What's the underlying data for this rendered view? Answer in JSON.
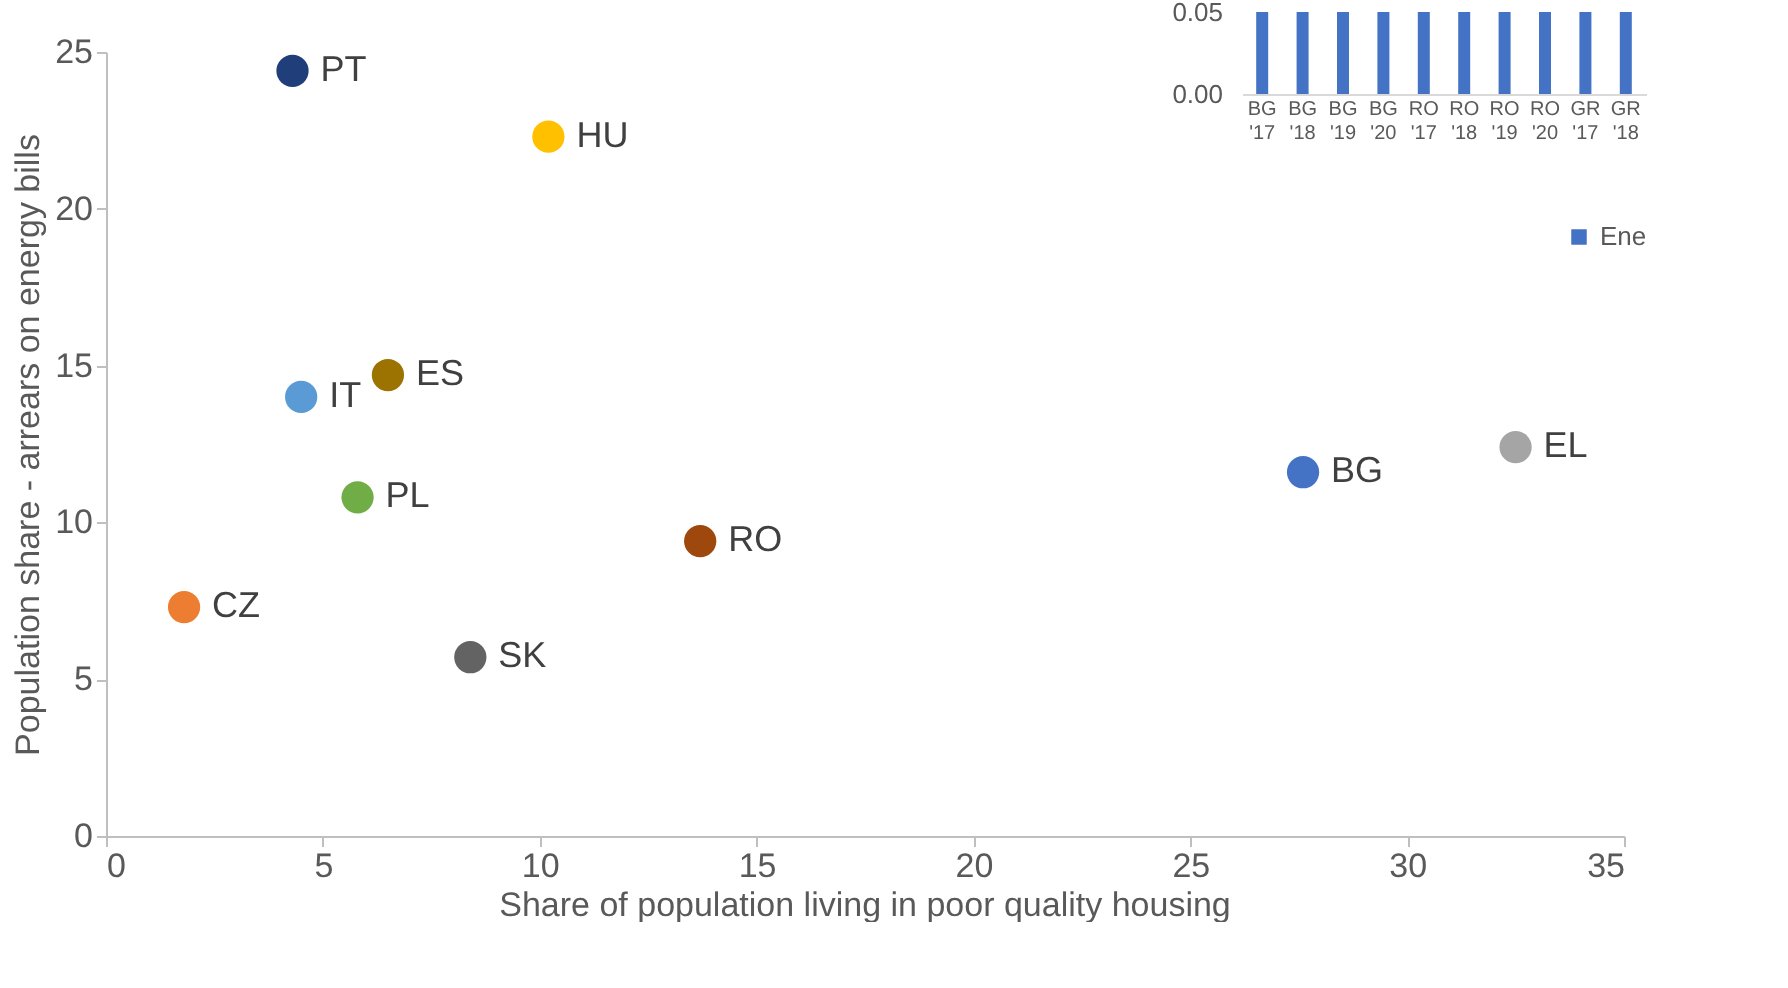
{
  "chart_data": [
    {
      "type": "scatter",
      "xlabel": "Share of population living in poor quality housing",
      "ylabel": "Population share - arrears on energy bills",
      "xlim": [
        0,
        35
      ],
      "ylim": [
        0,
        25
      ],
      "xticks": [
        0,
        5,
        10,
        15,
        20,
        25,
        30,
        35
      ],
      "yticks": [
        0,
        5,
        10,
        15,
        20,
        25
      ],
      "marker": "circle",
      "legend": false,
      "series": [
        {
          "name": "PT",
          "color": "#203f7a",
          "x": [
            4.3
          ],
          "values": [
            24.4
          ]
        },
        {
          "name": "HU",
          "color": "#ffc000",
          "x": [
            10.2
          ],
          "values": [
            22.3
          ]
        },
        {
          "name": "ES",
          "color": "#9c7300",
          "x": [
            6.5
          ],
          "values": [
            14.7
          ]
        },
        {
          "name": "IT",
          "color": "#5b9bd5",
          "x": [
            4.5
          ],
          "values": [
            14.0
          ]
        },
        {
          "name": "PL",
          "color": "#70ad47",
          "x": [
            5.8
          ],
          "values": [
            10.8
          ]
        },
        {
          "name": "RO",
          "color": "#9e480e",
          "x": [
            13.7
          ],
          "values": [
            9.4
          ]
        },
        {
          "name": "CZ",
          "color": "#ed7d31",
          "x": [
            1.8
          ],
          "values": [
            7.3
          ]
        },
        {
          "name": "SK",
          "color": "#636363",
          "x": [
            8.4
          ],
          "values": [
            5.7
          ]
        },
        {
          "name": "BG",
          "color": "#4472c4",
          "x": [
            27.6
          ],
          "values": [
            11.6
          ]
        },
        {
          "name": "EL",
          "color": "#a5a5a5",
          "x": [
            32.5
          ],
          "values": [
            12.4
          ]
        }
      ]
    },
    {
      "type": "bar",
      "categories": [
        "BG '17",
        "BG '18",
        "BG '19",
        "BG '20",
        "RO '17",
        "RO '18",
        "RO '19",
        "RO '20",
        "GR '17",
        "GR '18"
      ],
      "ylim": [
        0,
        0.05
      ],
      "yticks": [
        {
          "value": 0,
          "label": "0.00"
        },
        {
          "value": 0.05,
          "label": "0.05"
        }
      ],
      "legend": "bottom right",
      "series": [
        {
          "name": "Ene",
          "color": "#4472c4",
          "values": [
            0.05,
            0.05,
            0.05,
            0.05,
            0.05,
            0.05,
            0.05,
            0.05,
            0.05,
            0.05
          ]
        }
      ]
    }
  ]
}
